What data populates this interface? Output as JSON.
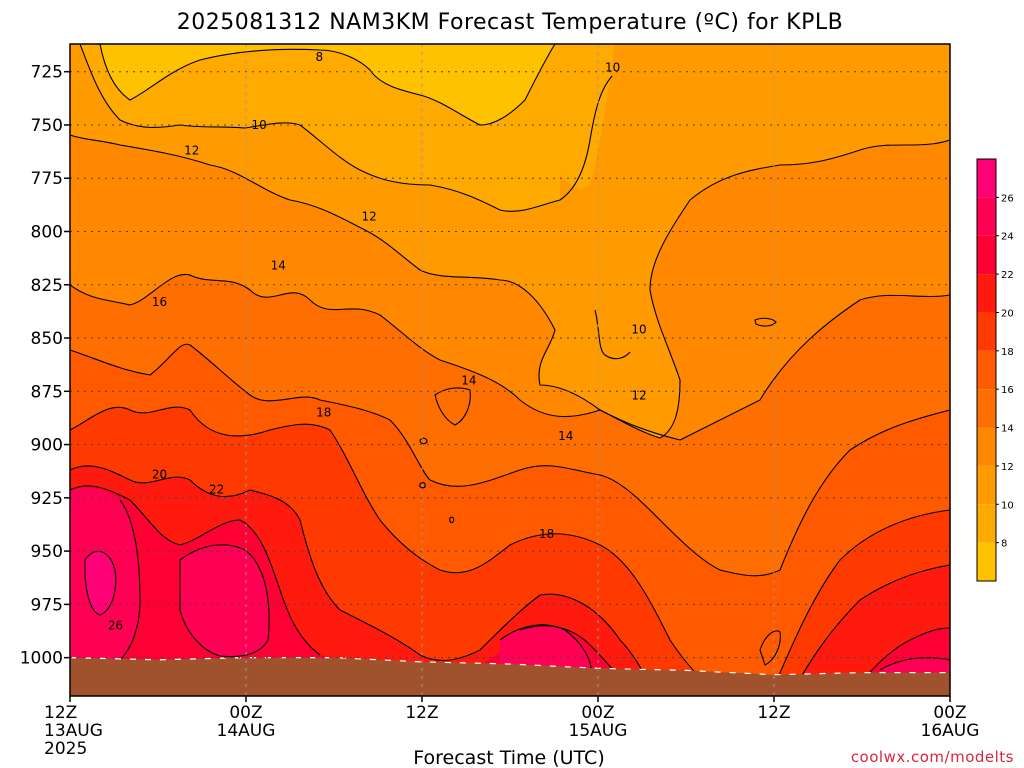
{
  "chart_data": {
    "type": "heatmap",
    "title": "2025081312 NAM3KM Forecast Temperature (ºC) for KPLB",
    "xlabel": "Forecast Time (UTC)",
    "ylabel": "",
    "credit": "coolwx.com/modelts",
    "x_range_hours": [
      0,
      60
    ],
    "y_range_hpa": [
      712,
      1018
    ],
    "y_axis": "pressure, inverted",
    "grid": true,
    "x_ticks": [
      {
        "hour": 0,
        "lines": [
          "12Z",
          "13AUG",
          "2025"
        ]
      },
      {
        "hour": 12,
        "lines": [
          "00Z",
          "14AUG"
        ]
      },
      {
        "hour": 24,
        "lines": [
          "12Z"
        ]
      },
      {
        "hour": 36,
        "lines": [
          "00Z",
          "15AUG"
        ]
      },
      {
        "hour": 48,
        "lines": [
          "12Z"
        ]
      },
      {
        "hour": 60,
        "lines": [
          "00Z",
          "16AUG"
        ]
      }
    ],
    "y_ticks": [
      725,
      750,
      775,
      800,
      825,
      850,
      875,
      900,
      925,
      950,
      975,
      1000
    ],
    "colorbar": {
      "levels": [
        6,
        8,
        10,
        12,
        14,
        16,
        18,
        20,
        22,
        24,
        26,
        28
      ],
      "labels": [
        8,
        10,
        12,
        14,
        16,
        18,
        20,
        22,
        24,
        26
      ],
      "colors": [
        "#ffc200",
        "#ffaa00",
        "#ff9a00",
        "#ff8800",
        "#ff6e00",
        "#ff5a00",
        "#ff3a00",
        "#ff1a10",
        "#ff0035",
        "#ff0055",
        "#ff0077"
      ]
    },
    "contour_labels": [
      {
        "text": "8",
        "hour": 17.0,
        "hpa": 718
      },
      {
        "text": "10",
        "hour": 12.9,
        "hpa": 750
      },
      {
        "text": "10",
        "hour": 37.0,
        "hpa": 723
      },
      {
        "text": "10",
        "hour": 38.8,
        "hpa": 846
      },
      {
        "text": "12",
        "hour": 8.3,
        "hpa": 762
      },
      {
        "text": "12",
        "hour": 20.4,
        "hpa": 793
      },
      {
        "text": "12",
        "hour": 38.8,
        "hpa": 877
      },
      {
        "text": "14",
        "hour": 14.2,
        "hpa": 816
      },
      {
        "text": "14",
        "hour": 27.2,
        "hpa": 870
      },
      {
        "text": "14",
        "hour": 33.8,
        "hpa": 896
      },
      {
        "text": "16",
        "hour": 6.1,
        "hpa": 833
      },
      {
        "text": "18",
        "hour": 17.3,
        "hpa": 885
      },
      {
        "text": "18",
        "hour": 32.5,
        "hpa": 942
      },
      {
        "text": "20",
        "hour": 6.1,
        "hpa": 914
      },
      {
        "text": "22",
        "hour": 10.0,
        "hpa": 921
      },
      {
        "text": "26",
        "hour": 3.1,
        "hpa": 985
      }
    ],
    "terrain_surface_hpa": [
      {
        "hour": 0,
        "hpa": 1000
      },
      {
        "hour": 6,
        "hpa": 1001
      },
      {
        "hour": 12,
        "hpa": 1000
      },
      {
        "hour": 18,
        "hpa": 1000
      },
      {
        "hour": 24,
        "hpa": 1002
      },
      {
        "hour": 30,
        "hpa": 1003
      },
      {
        "hour": 36,
        "hpa": 1005
      },
      {
        "hour": 42,
        "hpa": 1006
      },
      {
        "hour": 48,
        "hpa": 1008
      },
      {
        "hour": 54,
        "hpa": 1007
      },
      {
        "hour": 60,
        "hpa": 1007
      }
    ]
  }
}
